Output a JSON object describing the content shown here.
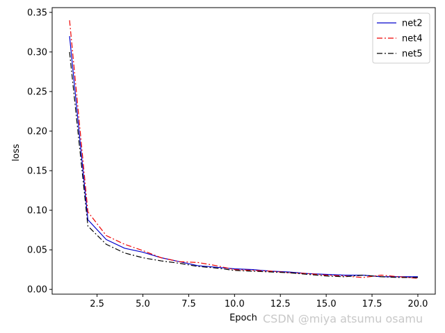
{
  "chart_data": {
    "type": "line",
    "title": "",
    "xlabel": "Epoch",
    "ylabel": "loss",
    "xlim": [
      0.05,
      20.95
    ],
    "ylim": [
      -0.006,
      0.356
    ],
    "xticks": [
      2.5,
      5.0,
      7.5,
      10.0,
      12.5,
      15.0,
      17.5,
      20.0
    ],
    "xtick_labels": [
      "2.5",
      "5.0",
      "7.5",
      "10.0",
      "12.5",
      "15.0",
      "17.5",
      "20.0"
    ],
    "yticks": [
      0.0,
      0.05,
      0.1,
      0.15,
      0.2,
      0.25,
      0.3,
      0.35
    ],
    "ytick_labels": [
      "0.00",
      "0.05",
      "0.10",
      "0.15",
      "0.20",
      "0.25",
      "0.30",
      "0.35"
    ],
    "grid": false,
    "legend_position": "top-right",
    "x": [
      1,
      2,
      3,
      4,
      5,
      6,
      7,
      8,
      9,
      10,
      11,
      12,
      13,
      14,
      15,
      16,
      17,
      18,
      19,
      20
    ],
    "series": [
      {
        "name": "net2",
        "color": "#0000cc",
        "dash": "solid",
        "values": [
          0.32,
          0.088,
          0.063,
          0.052,
          0.047,
          0.04,
          0.035,
          0.03,
          0.028,
          0.026,
          0.025,
          0.023,
          0.022,
          0.02,
          0.019,
          0.018,
          0.018,
          0.016,
          0.016,
          0.016
        ]
      },
      {
        "name": "net4",
        "color": "#ee0000",
        "dash": "dashdot",
        "values": [
          0.34,
          0.098,
          0.068,
          0.057,
          0.049,
          0.04,
          0.035,
          0.034,
          0.03,
          0.025,
          0.024,
          0.023,
          0.021,
          0.02,
          0.018,
          0.017,
          0.015,
          0.018,
          0.016,
          0.014
        ]
      },
      {
        "name": "net5",
        "color": "#000000",
        "dash": "dashdot",
        "values": [
          0.3,
          0.08,
          0.057,
          0.046,
          0.04,
          0.036,
          0.033,
          0.029,
          0.027,
          0.024,
          0.023,
          0.022,
          0.021,
          0.019,
          0.017,
          0.016,
          0.018,
          0.016,
          0.015,
          0.015
        ]
      }
    ]
  },
  "watermark": "CSDN @miya atsumu osamu"
}
